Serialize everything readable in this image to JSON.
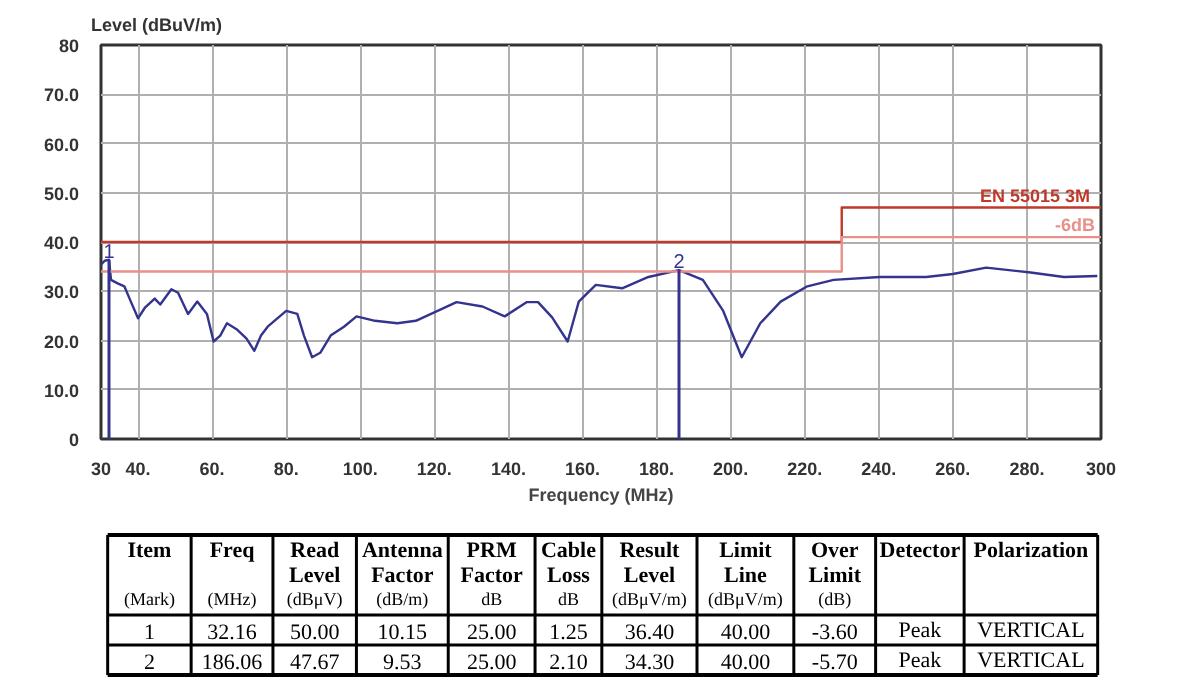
{
  "chart_data": [
    {
      "type": "line",
      "ylabel": "Level (dBuV/m)",
      "xlabel": "Frequency (MHz)",
      "xlim": [
        30,
        300
      ],
      "ylim": [
        0,
        80
      ],
      "xticks": [
        30,
        {
          "value": 40,
          "label": "40."
        },
        {
          "value": 60,
          "label": "60."
        },
        {
          "value": 80,
          "label": "80."
        },
        {
          "value": 100,
          "label": "100."
        },
        {
          "value": 120,
          "label": "120."
        },
        {
          "value": 140,
          "label": "140."
        },
        {
          "value": 160,
          "label": "160."
        },
        {
          "value": 180,
          "label": "180."
        },
        {
          "value": 200,
          "label": "200."
        },
        {
          "value": 220,
          "label": "220."
        },
        {
          "value": 240,
          "label": "240."
        },
        {
          "value": 260,
          "label": "260."
        },
        {
          "value": 280,
          "label": "280."
        },
        300
      ],
      "yticks": [
        0,
        {
          "value": 10,
          "label": "10.0"
        },
        {
          "value": 20,
          "label": "20.0"
        },
        {
          "value": 30,
          "label": "30.0"
        },
        {
          "value": 40,
          "label": "40.0"
        },
        {
          "value": 50,
          "label": "50.0"
        },
        {
          "value": 60,
          "label": "60.0"
        },
        {
          "value": 70,
          "label": "70.0"
        },
        80
      ],
      "grid": true,
      "series": [
        {
          "color": "#34348f",
          "x": [
            30,
            31,
            32.16,
            32.7,
            34.5,
            36.3,
            38,
            40,
            41.8,
            44.5,
            46,
            49,
            50.8,
            53.5,
            56,
            58.6,
            60.4,
            62.2,
            64,
            66.6,
            69.3,
            71.4,
            73.2,
            75,
            80,
            83,
            84.8,
            87,
            89.2,
            92,
            95.6,
            99,
            104,
            110,
            115,
            120,
            126,
            133,
            139,
            145,
            148,
            151.8,
            156,
            159,
            163.6,
            170.7,
            177.8,
            186.06,
            192.5,
            198,
            203,
            208,
            213.5,
            220.7,
            227.8,
            240.3,
            252.8,
            260,
            269,
            281,
            290,
            299
          ],
          "values": [
            35.4,
            36.2,
            36.4,
            32.3,
            31.6,
            31,
            28,
            24.5,
            26.6,
            28.5,
            27.3,
            30.4,
            29.7,
            25.4,
            27.9,
            25.4,
            19.8,
            21,
            23.5,
            22.3,
            20.4,
            17.9,
            21,
            22.8,
            26,
            25.4,
            21,
            16.6,
            17.5,
            21,
            22.8,
            24.9,
            24,
            23.5,
            24,
            25.7,
            27.8,
            26.9,
            24.9,
            27.8,
            27.8,
            24.7,
            19.8,
            27.9,
            31.3,
            30.6,
            32.9,
            34.3,
            32.3,
            26,
            16.6,
            23.5,
            27.9,
            31,
            32.3,
            32.9,
            32.9,
            33.5,
            34.8,
            33.8,
            32.9,
            33.1
          ]
        },
        {
          "type": "step",
          "name": "EN 55015  3M",
          "color": "#c0392b",
          "x": [
            30,
            230,
            300
          ],
          "values": [
            40,
            47,
            47
          ]
        },
        {
          "type": "step",
          "name": "-6dB",
          "color": "#e8908a",
          "x": [
            30,
            230,
            300
          ],
          "values": [
            34,
            41,
            41
          ]
        }
      ],
      "annotations": [
        {
          "text": "1",
          "x": 32.16,
          "y": 36.4
        },
        {
          "text": "2",
          "x": 186.06,
          "y": 34.3
        }
      ]
    },
    {
      "type": "other",
      "categories": [
        "Item\n\n(Mark)",
        "Freq\n\n(MHz)",
        "Read\nLevel\n(dBμV)",
        "Antenna\nFactor\n(dB/m)",
        "PRM\nFactor\ndB",
        "Cable\nLoss\ndB",
        "Result\nLevel\n(dBμV/m)",
        "Limit\nLine\n(dBμV/m)",
        "Over\nLimit\n(dB)",
        "Detector",
        "Polarization"
      ],
      "cells": [
        [
          "1",
          "32.16",
          "50.00",
          "10.15",
          "25.00",
          "1.25",
          "36.40",
          "40.00",
          "-3.60",
          "Peak",
          "VERTICAL"
        ],
        [
          "2",
          "186.06",
          "47.67",
          "9.53",
          "25.00",
          "2.10",
          "34.30",
          "40.00",
          "-5.70",
          "Peak",
          "VERTICAL"
        ]
      ]
    }
  ]
}
